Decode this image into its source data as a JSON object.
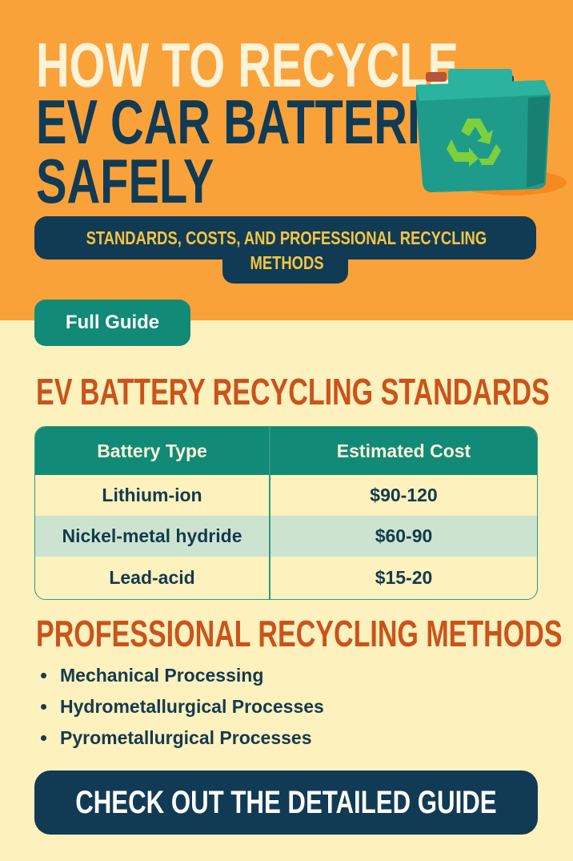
{
  "header": {
    "title_line1": "HOW TO RECYCLE",
    "title_line2": "EV CAR BATTERIES",
    "title_line3": "SAFELY",
    "subtitle_line1": "STANDARDS, COSTS, AND PROFESSIONAL RECYCLING",
    "subtitle_line2": "METHODS",
    "illustration_icon": "battery-recycle-icon"
  },
  "full_guide_label": "Full Guide",
  "standards": {
    "heading": "EV BATTERY RECYCLING STANDARDS",
    "columns": [
      "Battery Type",
      "Estimated Cost"
    ],
    "rows": [
      [
        "Lithium-ion",
        "$90-120"
      ],
      [
        "Nickel-metal hydride",
        "$60-90"
      ],
      [
        "Lead-acid",
        "$15-20"
      ]
    ]
  },
  "methods": {
    "heading": "PROFESSIONAL RECYCLING METHODS",
    "items": [
      "Mechanical Processing",
      "Hydrometallurgical Processes",
      "Pyrometallurgical Processes"
    ]
  },
  "cta_label": "CHECK OUT THE DETAILED GUIDE",
  "colors": {
    "orange": "#f9a23a",
    "cream": "#fdf1bd",
    "navy": "#113b55",
    "teal": "#128a78",
    "heading": "#c9541c",
    "subtitle": "#f4c542"
  }
}
